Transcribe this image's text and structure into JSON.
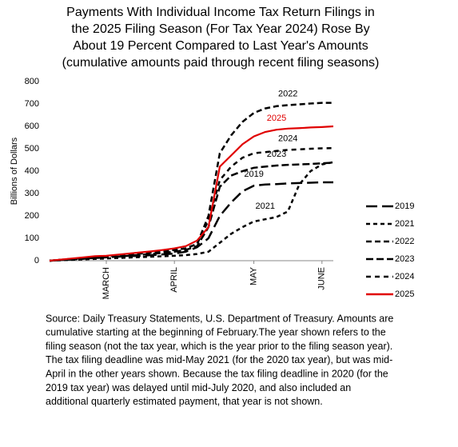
{
  "chart_data": {
    "type": "line",
    "title": [
      "Payments With Individual Income Tax Return Filings in",
      "the 2025 Filing Season (For Tax Year 2024) Rose By",
      "About 19 Percent Compared to Last Year's Amounts",
      "(cumulative amounts paid through recent filing seasons)"
    ],
    "y_label": "Billions of Dollars",
    "categories": [
      null,
      null,
      null,
      null,
      null,
      "MARCH",
      null,
      null,
      null,
      null,
      null,
      "APRIL",
      null,
      null,
      null,
      null,
      null,
      null,
      "MAY",
      null,
      null,
      null,
      null,
      null,
      "JUNE",
      null
    ],
    "ylim": [
      0,
      800
    ],
    "yticks": [
      0,
      100,
      200,
      300,
      400,
      500,
      600,
      700,
      800
    ],
    "grid": false,
    "legend": "right",
    "series": [
      {
        "name": "2019",
        "color": "#000000",
        "dash": "14 6",
        "values": [
          0,
          3,
          6,
          9,
          12,
          15,
          18,
          20,
          22,
          25,
          28,
          32,
          40,
          60,
          100,
          200,
          260,
          310,
          335,
          340,
          342,
          345,
          347,
          348,
          350,
          350
        ]
      },
      {
        "name": "2021",
        "color": "#000000",
        "dash": "5 4",
        "values": [
          0,
          2,
          4,
          6,
          8,
          10,
          12,
          14,
          16,
          18,
          20,
          22,
          25,
          30,
          40,
          80,
          120,
          150,
          175,
          185,
          195,
          220,
          340,
          400,
          430,
          440
        ]
      },
      {
        "name": "2022",
        "color": "#000000",
        "dash": "7 4",
        "values": [
          0,
          4,
          8,
          12,
          16,
          20,
          24,
          28,
          32,
          36,
          42,
          48,
          55,
          75,
          200,
          480,
          560,
          620,
          660,
          680,
          690,
          695,
          698,
          702,
          705,
          705
        ]
      },
      {
        "name": "2023",
        "color": "#000000",
        "dash": "9 4",
        "values": [
          0,
          3,
          6,
          9,
          12,
          15,
          18,
          22,
          26,
          30,
          35,
          40,
          48,
          65,
          150,
          330,
          380,
          400,
          415,
          420,
          425,
          428,
          430,
          432,
          435,
          438
        ]
      },
      {
        "name": "2024",
        "color": "#000000",
        "dash": "6 5",
        "values": [
          0,
          4,
          8,
          12,
          16,
          20,
          24,
          28,
          32,
          36,
          42,
          48,
          55,
          75,
          180,
          360,
          420,
          460,
          480,
          485,
          490,
          495,
          497,
          500,
          502,
          503
        ]
      },
      {
        "name": "2025",
        "color": "#e00000",
        "dash": "",
        "values": [
          0,
          5,
          10,
          15,
          20,
          22,
          27,
          32,
          37,
          42,
          48,
          55,
          65,
          90,
          150,
          420,
          470,
          520,
          555,
          575,
          585,
          590,
          592,
          595,
          597,
          600
        ]
      }
    ],
    "notes": [
      "Source: Daily Treasury Statements, U.S. Department of Treasury. Amounts are",
      "cumulative starting at the beginning of February.The year shown refers to the",
      "filing season (not the tax year, which is the year prior to the filing season year).",
      "The tax filing deadline was mid-May 2021 (for the 2020 tax year), but was mid-",
      "April in the other years shown. Because the tax filing deadline in 2020 (for the",
      "2019 tax year) was delayed until mid-July 2020, and also included an",
      "additional quarterly estimated payment, that year is not shown."
    ]
  }
}
